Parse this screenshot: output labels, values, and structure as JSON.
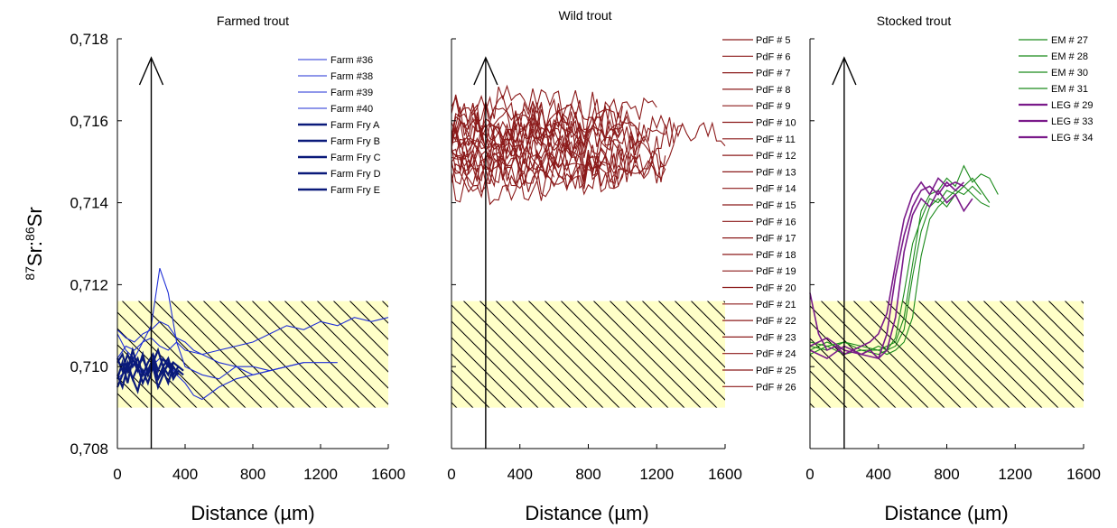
{
  "chart_data": [
    {
      "type": "line",
      "title": "Farmed trout",
      "xlabel": "Distance (µm)",
      "ylabel_base": "Sr:",
      "ylabel_sup1": "87",
      "ylabel_sup2": "86",
      "ylabel_tail": "Sr",
      "xlim": [
        0,
        1600
      ],
      "ylim": [
        0.708,
        0.718
      ],
      "xticks": [
        0,
        400,
        800,
        1200,
        1600
      ],
      "xtick_labels": [
        "0",
        "400",
        "800",
        "1200",
        "1600"
      ],
      "yticks": [
        0.708,
        0.71,
        0.712,
        0.714,
        0.716,
        0.718
      ],
      "ytick_labels": [
        "0,708",
        "0,710",
        "0,712",
        "0,714",
        "0,716",
        "0,718"
      ],
      "band": [
        0.709,
        0.7116
      ],
      "arrow_x": 200,
      "colors": {
        "thin": "#1f2fd6",
        "thick": "#0a1a7a"
      },
      "series": [
        {
          "name": "Farm #36",
          "style": "thin",
          "x": [
            0,
            50,
            100,
            150,
            200,
            250,
            300,
            350,
            400,
            500,
            600,
            700,
            800,
            900,
            1000,
            1100,
            1200,
            1300,
            1400,
            1500,
            1600
          ],
          "y": [
            0.7102,
            0.7105,
            0.7104,
            0.7106,
            0.7107,
            0.7105,
            0.7104,
            0.7106,
            0.7104,
            0.7103,
            0.7104,
            0.7105,
            0.7106,
            0.7108,
            0.711,
            0.7109,
            0.7111,
            0.711,
            0.7112,
            0.7111,
            0.7112
          ]
        },
        {
          "name": "Farm #38",
          "style": "thin",
          "x": [
            0,
            50,
            100,
            150,
            200,
            250,
            300,
            350,
            400,
            500,
            600,
            700,
            800,
            900,
            1000,
            1100,
            1200,
            1300
          ],
          "y": [
            0.7108,
            0.7104,
            0.7102,
            0.7106,
            0.711,
            0.7124,
            0.7118,
            0.7106,
            0.71,
            0.7098,
            0.7097,
            0.71,
            0.7098,
            0.7099,
            0.71,
            0.7101,
            0.7101,
            0.7101
          ]
        },
        {
          "name": "Farm #39",
          "style": "thin",
          "x": [
            0,
            50,
            100,
            150,
            200,
            250,
            300,
            350,
            400,
            450,
            500,
            600,
            700,
            800,
            900,
            1000,
            1100
          ],
          "y": [
            0.7097,
            0.7099,
            0.7101,
            0.7098,
            0.71,
            0.7102,
            0.7101,
            0.7098,
            0.7096,
            0.7093,
            0.7092,
            0.7095,
            0.7097,
            0.7098,
            0.7099,
            0.71,
            0.7101
          ]
        },
        {
          "name": "Farm #40",
          "style": "thin",
          "x": [
            0,
            50,
            100,
            150,
            200,
            250,
            300,
            350,
            400,
            450,
            500,
            550,
            600,
            700,
            800,
            900
          ],
          "y": [
            0.7109,
            0.7107,
            0.7106,
            0.7108,
            0.7109,
            0.7111,
            0.711,
            0.7107,
            0.7106,
            0.7104,
            0.7103,
            0.7102,
            0.7101,
            0.71,
            0.71,
            0.7099
          ]
        },
        {
          "name": "Farm Fry A",
          "style": "thick",
          "x": [
            0,
            30,
            60,
            90,
            120,
            150,
            180,
            210,
            240,
            270,
            300,
            330,
            360,
            390
          ],
          "y": [
            0.7097,
            0.7101,
            0.7096,
            0.7102,
            0.7099,
            0.7103,
            0.7098,
            0.7101,
            0.7097,
            0.71,
            0.7102,
            0.7098,
            0.71,
            0.7099
          ]
        },
        {
          "name": "Farm Fry B",
          "style": "thick",
          "x": [
            0,
            30,
            60,
            90,
            120,
            150,
            180,
            210,
            240,
            270,
            300,
            330,
            360
          ],
          "y": [
            0.7101,
            0.7103,
            0.7099,
            0.7104,
            0.71,
            0.7102,
            0.7099,
            0.7101,
            0.7104,
            0.71,
            0.7098,
            0.7101,
            0.71
          ]
        },
        {
          "name": "Farm Fry C",
          "style": "thick",
          "x": [
            0,
            30,
            60,
            90,
            120,
            150,
            180,
            210,
            240,
            270,
            300,
            330,
            360,
            390
          ],
          "y": [
            0.7098,
            0.7095,
            0.71,
            0.7097,
            0.7094,
            0.7099,
            0.7096,
            0.71,
            0.7095,
            0.7098,
            0.7101,
            0.7097,
            0.7099,
            0.7098
          ]
        },
        {
          "name": "Farm Fry D",
          "style": "thick",
          "x": [
            0,
            30,
            60,
            90,
            120,
            150,
            180,
            210,
            240,
            270,
            300,
            330
          ],
          "y": [
            0.7102,
            0.7099,
            0.7103,
            0.71,
            0.7102,
            0.7098,
            0.7101,
            0.7103,
            0.7099,
            0.7102,
            0.71,
            0.7101
          ]
        },
        {
          "name": "Farm Fry E",
          "style": "thick",
          "x": [
            0,
            30,
            60,
            90,
            120,
            150,
            180,
            210,
            240,
            270,
            300,
            330,
            360
          ],
          "y": [
            0.7095,
            0.7098,
            0.7101,
            0.7097,
            0.71,
            0.7096,
            0.7099,
            0.7102,
            0.7097,
            0.7099,
            0.7096,
            0.71,
            0.7098
          ]
        }
      ]
    },
    {
      "type": "line",
      "title": "Wild trout",
      "xlabel": "Distance (µm)",
      "xlim": [
        0,
        1600
      ],
      "ylim": [
        0.708,
        0.718
      ],
      "xticks": [
        0,
        400,
        800,
        1200,
        1600
      ],
      "xtick_labels": [
        "0",
        "400",
        "800",
        "1200",
        "1600"
      ],
      "band": [
        0.709,
        0.7116
      ],
      "arrow_x": 200,
      "colors": {
        "line": "#8b1a1a"
      },
      "series": [
        {
          "name": "PdF # 5",
          "base": 0.7162,
          "end": 1200
        },
        {
          "name": "PdF # 6",
          "base": 0.7158,
          "end": 1350
        },
        {
          "name": "PdF # 7",
          "base": 0.7155,
          "end": 1600
        },
        {
          "name": "PdF # 8",
          "base": 0.716,
          "end": 1000
        },
        {
          "name": "PdF # 9",
          "base": 0.7152,
          "end": 1300
        },
        {
          "name": "PdF # 10",
          "base": 0.7149,
          "end": 1250
        },
        {
          "name": "PdF # 11",
          "base": 0.7156,
          "end": 1100
        },
        {
          "name": "PdF # 12",
          "base": 0.7146,
          "end": 1000
        },
        {
          "name": "PdF # 13",
          "base": 0.7153,
          "end": 900
        },
        {
          "name": "PdF # 14",
          "base": 0.715,
          "end": 1200
        },
        {
          "name": "PdF # 15",
          "base": 0.7158,
          "end": 800
        },
        {
          "name": "PdF # 16",
          "base": 0.7144,
          "end": 600
        },
        {
          "name": "PdF # 17",
          "base": 0.7161,
          "end": 1000
        },
        {
          "name": "PdF # 18",
          "base": 0.7147,
          "end": 1250
        },
        {
          "name": "PdF # 19",
          "base": 0.7155,
          "end": 700
        },
        {
          "name": "PdF # 20",
          "base": 0.7152,
          "end": 1100
        },
        {
          "name": "PdF # 21",
          "base": 0.7164,
          "end": 900
        },
        {
          "name": "PdF # 22",
          "base": 0.7149,
          "end": 1000
        },
        {
          "name": "PdF # 23",
          "base": 0.7157,
          "end": 1250
        },
        {
          "name": "PdF # 24",
          "base": 0.7151,
          "end": 1000
        },
        {
          "name": "PdF # 25",
          "base": 0.7159,
          "end": 1100
        },
        {
          "name": "PdF # 26",
          "base": 0.7148,
          "end": 1250
        }
      ]
    },
    {
      "type": "line",
      "title": "Stocked trout",
      "xlabel": "Distance (µm)",
      "xlim": [
        0,
        1600
      ],
      "ylim": [
        0.708,
        0.718
      ],
      "xticks": [
        0,
        400,
        800,
        1200,
        1600
      ],
      "xtick_labels": [
        "0",
        "400",
        "800",
        "1200",
        "1600"
      ],
      "band": [
        0.709,
        0.7116
      ],
      "arrow_x": 200,
      "colors": {
        "green": "#1a8a1a",
        "purple": "#7a1a8a"
      },
      "series": [
        {
          "name": "EM # 27",
          "style": "green",
          "x": [
            0,
            100,
            200,
            300,
            400,
            450,
            500,
            550,
            600,
            650,
            700,
            750,
            800,
            850,
            900,
            950,
            1000,
            1050,
            1100
          ],
          "y": [
            0.7105,
            0.7104,
            0.7106,
            0.7105,
            0.7104,
            0.7105,
            0.7106,
            0.7112,
            0.7125,
            0.7138,
            0.7142,
            0.7143,
            0.7146,
            0.7144,
            0.7149,
            0.7145,
            0.7147,
            0.7146,
            0.7142
          ]
        },
        {
          "name": "EM # 28",
          "style": "green",
          "x": [
            0,
            100,
            200,
            300,
            400,
            450,
            500,
            550,
            600,
            650,
            700,
            750,
            800,
            850,
            900,
            950,
            1000,
            1050
          ],
          "y": [
            0.7104,
            0.7106,
            0.7104,
            0.7103,
            0.7105,
            0.7104,
            0.7107,
            0.7118,
            0.713,
            0.7136,
            0.7141,
            0.714,
            0.7143,
            0.7142,
            0.7144,
            0.7146,
            0.7143,
            0.714
          ]
        },
        {
          "name": "EM # 30",
          "style": "green",
          "x": [
            0,
            100,
            200,
            300,
            400,
            450,
            500,
            550,
            600,
            650,
            700,
            750,
            800,
            850,
            900,
            950,
            1000,
            1050
          ],
          "y": [
            0.7103,
            0.7105,
            0.7103,
            0.7104,
            0.7103,
            0.7104,
            0.7105,
            0.7109,
            0.7122,
            0.7133,
            0.7139,
            0.7141,
            0.7139,
            0.7142,
            0.7144,
            0.7142,
            0.714,
            0.7139
          ]
        },
        {
          "name": "EM # 31",
          "style": "green",
          "x": [
            0,
            100,
            200,
            300,
            400,
            450,
            500,
            550,
            600,
            650,
            700,
            750,
            800,
            850,
            900,
            950,
            1000
          ],
          "y": [
            0.7106,
            0.7105,
            0.7106,
            0.7104,
            0.7104,
            0.7103,
            0.7104,
            0.7106,
            0.7112,
            0.7127,
            0.7136,
            0.7139,
            0.7141,
            0.7143,
            0.7142,
            0.7144,
            0.7142
          ]
        },
        {
          "name": "LEG # 29",
          "style": "purple",
          "x": [
            0,
            50,
            100,
            150,
            200,
            250,
            300,
            350,
            400,
            450,
            500,
            550,
            600,
            650,
            700,
            750,
            800,
            850,
            900
          ],
          "y": [
            0.7118,
            0.7108,
            0.7104,
            0.7105,
            0.7103,
            0.7104,
            0.7105,
            0.7106,
            0.7108,
            0.7113,
            0.7125,
            0.7136,
            0.7142,
            0.7145,
            0.7142,
            0.7146,
            0.7144,
            0.7145,
            0.7144
          ]
        },
        {
          "name": "LEG # 33",
          "style": "purple",
          "x": [
            0,
            100,
            200,
            300,
            400,
            450,
            500,
            550,
            600,
            650,
            700,
            750,
            800,
            850,
            900,
            950
          ],
          "y": [
            0.7105,
            0.7107,
            0.7104,
            0.7103,
            0.7102,
            0.7104,
            0.7112,
            0.7128,
            0.7137,
            0.7141,
            0.7139,
            0.7143,
            0.714,
            0.7142,
            0.7138,
            0.7141
          ]
        },
        {
          "name": "LEG # 34",
          "style": "purple",
          "x": [
            0,
            100,
            200,
            300,
            350,
            400,
            450,
            500,
            550,
            600,
            650,
            700,
            750,
            800,
            850,
            900
          ],
          "y": [
            0.7104,
            0.7102,
            0.7105,
            0.7103,
            0.7104,
            0.7102,
            0.7108,
            0.7122,
            0.7132,
            0.7139,
            0.7143,
            0.7144,
            0.7142,
            0.7145,
            0.7143,
            0.7145
          ]
        }
      ]
    }
  ]
}
